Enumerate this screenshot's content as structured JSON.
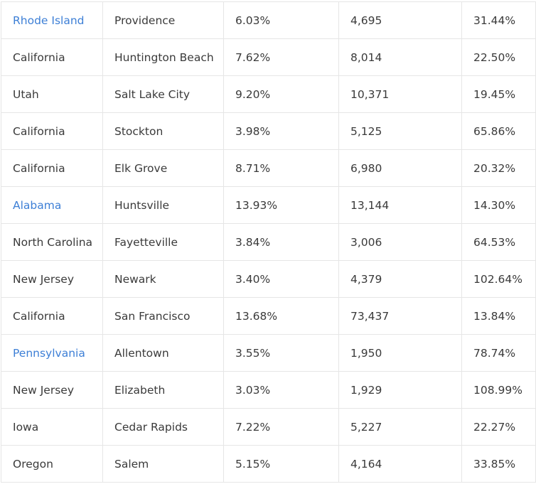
{
  "rows": [
    {
      "state": "Rhode Island",
      "state_is_link": true,
      "city": "Providence",
      "col3": "6.03%",
      "col4": "4,695",
      "col5": "31.44%"
    },
    {
      "state": "California",
      "state_is_link": false,
      "city": "Huntington Beach",
      "col3": "7.62%",
      "col4": "8,014",
      "col5": "22.50%"
    },
    {
      "state": "Utah",
      "state_is_link": false,
      "city": "Salt Lake City",
      "col3": "9.20%",
      "col4": "10,371",
      "col5": "19.45%"
    },
    {
      "state": "California",
      "state_is_link": false,
      "city": "Stockton",
      "col3": "3.98%",
      "col4": "5,125",
      "col5": "65.86%"
    },
    {
      "state": "California",
      "state_is_link": false,
      "city": "Elk Grove",
      "col3": "8.71%",
      "col4": "6,980",
      "col5": "20.32%"
    },
    {
      "state": "Alabama",
      "state_is_link": true,
      "city": "Huntsville",
      "col3": "13.93%",
      "col4": "13,144",
      "col5": "14.30%"
    },
    {
      "state": "North Carolina",
      "state_is_link": false,
      "city": "Fayetteville",
      "col3": "3.84%",
      "col4": "3,006",
      "col5": "64.53%"
    },
    {
      "state": "New Jersey",
      "state_is_link": false,
      "city": "Newark",
      "col3": "3.40%",
      "col4": "4,379",
      "col5": "102.64%"
    },
    {
      "state": "California",
      "state_is_link": false,
      "city": "San Francisco",
      "col3": "13.68%",
      "col4": "73,437",
      "col5": "13.84%"
    },
    {
      "state": "Pennsylvania",
      "state_is_link": true,
      "city": "Allentown",
      "col3": "3.55%",
      "col4": "1,950",
      "col5": "78.74%"
    },
    {
      "state": "New Jersey",
      "state_is_link": false,
      "city": "Elizabeth",
      "col3": "3.03%",
      "col4": "1,929",
      "col5": "108.99%"
    },
    {
      "state": "Iowa",
      "state_is_link": false,
      "city": "Cedar Rapids",
      "col3": "7.22%",
      "col4": "5,227",
      "col5": "22.27%"
    },
    {
      "state": "Oregon",
      "state_is_link": false,
      "city": "Salem",
      "col3": "5.15%",
      "col4": "4,164",
      "col5": "33.85%"
    }
  ],
  "colors": {
    "link": "#3d7fd6",
    "text": "#3a3a3a",
    "border": "#e6e6e6"
  }
}
